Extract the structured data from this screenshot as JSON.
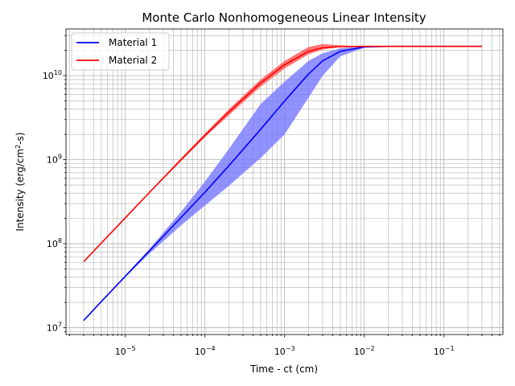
{
  "chart_data": {
    "type": "line",
    "title": "Monte Carlo Nonhomogeneous Linear Intensity",
    "xlabel": "Time - ct (cm)",
    "ylabel_main": "Intensity (erg/cm",
    "ylabel_sup": "2",
    "ylabel_tail": "-s)",
    "xscale": "log",
    "yscale": "log",
    "xlim": [
      1.8e-06,
      0.55
    ],
    "ylim": [
      8300000.0,
      36000000000.0
    ],
    "grid": true,
    "grid_which": "both",
    "legend_position": "top-left",
    "x_ticks": [
      {
        "value": 1e-05,
        "base": "10",
        "exp": "−5"
      },
      {
        "value": 0.0001,
        "base": "10",
        "exp": "−4"
      },
      {
        "value": 0.001,
        "base": "10",
        "exp": "−3"
      },
      {
        "value": 0.01,
        "base": "10",
        "exp": "−2"
      },
      {
        "value": 0.1,
        "base": "10",
        "exp": "−1"
      }
    ],
    "y_ticks": [
      {
        "value": 10000000.0,
        "base": "10",
        "exp": "7"
      },
      {
        "value": 100000000.0,
        "base": "10",
        "exp": "8"
      },
      {
        "value": 1000000000.0,
        "base": "10",
        "exp": "9"
      },
      {
        "value": 10000000000.0,
        "base": "10",
        "exp": "10"
      }
    ],
    "x": [
      3e-06,
      5e-06,
      1e-05,
      2e-05,
      5e-05,
      0.0001,
      0.0002,
      0.0005,
      0.001,
      0.002,
      0.003,
      0.005,
      0.01,
      0.02,
      0.05,
      0.1,
      0.3
    ],
    "series": [
      {
        "name": "Material 1",
        "color": "#0000ff",
        "band_color": "#7777ff",
        "values": [
          12200000.0,
          20500000.0,
          41000000.0,
          82000000.0,
          205000000.0,
          410000000.0,
          850000000.0,
          2300000000.0,
          5000000000.0,
          10500000000.0,
          15000000000.0,
          19500000000.0,
          22000000000.0,
          22300000000.0,
          22300000000.0,
          22300000000.0,
          22300000000.0
        ],
        "lower": [
          12200000.0,
          20500000.0,
          40000000.0,
          76000000.0,
          165000000.0,
          285000000.0,
          490000000.0,
          1050000000.0,
          2000000000.0,
          5500000000.0,
          10000000000.0,
          17000000000.0,
          21500000000.0,
          22300000000.0,
          22300000000.0,
          22300000000.0,
          22300000000.0
        ],
        "upper": [
          12200000.0,
          20500000.0,
          42000000.0,
          86000000.0,
          240000000.0,
          550000000.0,
          1350000000.0,
          4600000000.0,
          8500000000.0,
          15000000000.0,
          18500000000.0,
          21200000000.0,
          22300000000.0,
          22300000000.0,
          22300000000.0,
          22300000000.0,
          22300000000.0
        ]
      },
      {
        "name": "Material 2",
        "color": "#ff0000",
        "band_color": "#ff5555",
        "values": [
          61000000.0,
          102000000.0,
          203000000.0,
          406000000.0,
          1000000000.0,
          1950000000.0,
          3700000000.0,
          8200000000.0,
          13500000000.0,
          19500000000.0,
          21500000000.0,
          22200000000.0,
          22300000000.0,
          22300000000.0,
          22300000000.0,
          22300000000.0,
          22300000000.0
        ],
        "lower": [
          61000000.0,
          102000000.0,
          203000000.0,
          400000000.0,
          960000000.0,
          1850000000.0,
          3400000000.0,
          7400000000.0,
          12200000000.0,
          18000000000.0,
          20500000000.0,
          22000000000.0,
          22300000000.0,
          22300000000.0,
          22300000000.0,
          22300000000.0,
          22300000000.0
        ],
        "upper": [
          61000000.0,
          102000000.0,
          203000000.0,
          410000000.0,
          1040000000.0,
          2050000000.0,
          4000000000.0,
          9000000000.0,
          15000000000.0,
          22000000000.0,
          23800000000.0,
          23000000000.0,
          22300000000.0,
          22300000000.0,
          22300000000.0,
          22300000000.0,
          22300000000.0
        ]
      }
    ]
  }
}
